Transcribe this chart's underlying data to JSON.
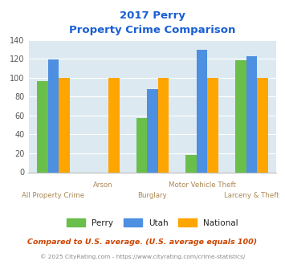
{
  "title_line1": "2017 Perry",
  "title_line2": "Property Crime Comparison",
  "categories": [
    "All Property Crime",
    "Arson",
    "Burglary",
    "Motor Vehicle Theft",
    "Larceny & Theft"
  ],
  "perry_values": [
    96,
    0,
    57,
    18,
    118
  ],
  "utah_values": [
    119,
    0,
    88,
    129,
    123
  ],
  "national_values": [
    100,
    100,
    100,
    100,
    100
  ],
  "arson_perry_utah_zero": true,
  "perry_color": "#6abf4b",
  "utah_color": "#4d8fe0",
  "national_color": "#ffa500",
  "bg_color": "#dce9f0",
  "title_color": "#1a5fd4",
  "xlabel_color_lower": "#aa8855",
  "xlabel_color_upper": "#aa8855",
  "ylabel_color": "#555555",
  "legend_labels": [
    "Perry",
    "Utah",
    "National"
  ],
  "legend_text_color": "#222222",
  "ylim": [
    0,
    140
  ],
  "yticks": [
    0,
    20,
    40,
    60,
    80,
    100,
    120,
    140
  ],
  "footnote1": "Compared to U.S. average. (U.S. average equals 100)",
  "footnote2": "© 2025 CityRating.com - https://www.cityrating.com/crime-statistics/",
  "footnote1_color": "#cc4400",
  "footnote2_color": "#888888",
  "bar_width": 0.22
}
